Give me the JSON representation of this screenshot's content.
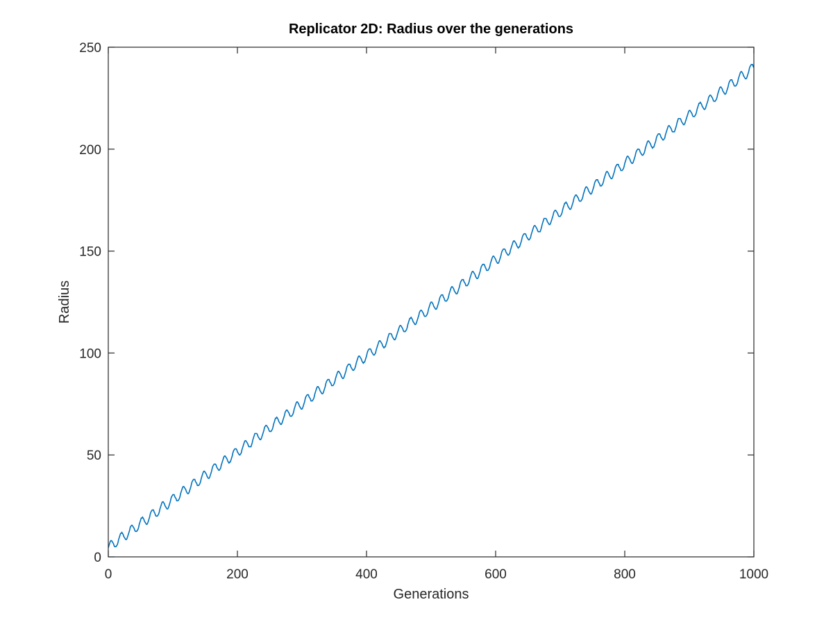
{
  "chart_data": {
    "type": "line",
    "title": "Replicator 2D: Radius over the generations",
    "xlabel": "Generations",
    "ylabel": "Radius",
    "xlim": [
      0,
      1000
    ],
    "ylim": [
      0,
      250
    ],
    "xticks": [
      0,
      200,
      400,
      600,
      800,
      1000
    ],
    "yticks": [
      0,
      50,
      100,
      150,
      200,
      250
    ],
    "grid": false,
    "legend": "none",
    "series": [
      {
        "color": "#0072BD",
        "x_range": [
          0,
          1000
        ],
        "start_value": 4.5,
        "end_value": 240,
        "oscillation_period": 16,
        "oscillation_amplitude": 2.5
      }
    ]
  }
}
